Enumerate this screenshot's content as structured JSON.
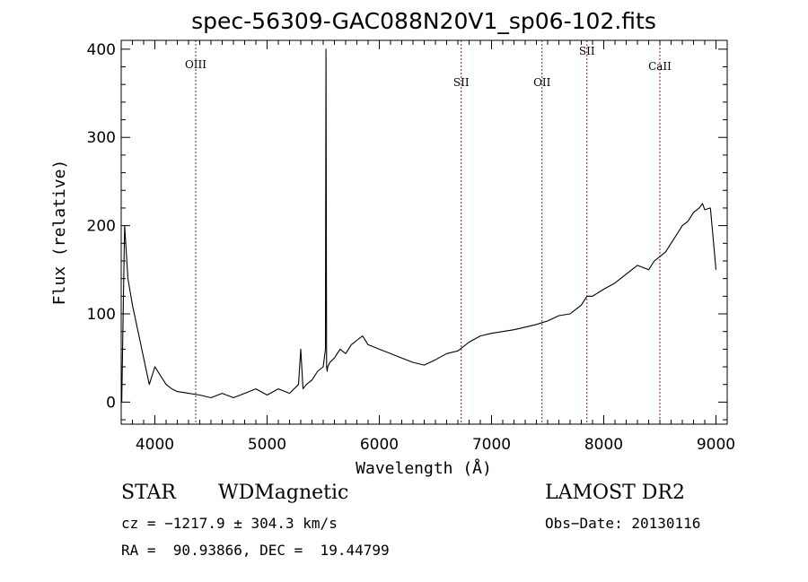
{
  "chart_data": {
    "type": "line",
    "title": "spec-56309-GAC088N20V1_sp06-102.fits",
    "xlabel": "Wavelength (Å)",
    "ylabel": "Flux (relative)",
    "xlim": [
      3700,
      9100
    ],
    "ylim": [
      -25,
      410
    ],
    "xticks": [
      4000,
      5000,
      6000,
      7000,
      8000,
      9000
    ],
    "yticks": [
      0,
      100,
      200,
      300,
      400
    ],
    "grid": false,
    "series": [
      {
        "x": [
          3705,
          3730,
          3760,
          3800,
          3850,
          3900,
          3950,
          4000,
          4050,
          4100,
          4150,
          4200,
          4300,
          4400,
          4500,
          4600,
          4700,
          4800,
          4900,
          5000,
          5100,
          5200,
          5280,
          5300,
          5320,
          5350,
          5400,
          5450,
          5500,
          5520,
          5525,
          5530,
          5535,
          5540,
          5560,
          5600,
          5650,
          5700,
          5750,
          5800,
          5850,
          5900,
          6000,
          6100,
          6200,
          6300,
          6400,
          6500,
          6600,
          6700,
          6800,
          6900,
          7000,
          7100,
          7200,
          7300,
          7400,
          7500,
          7600,
          7700,
          7800,
          7850,
          7900,
          8000,
          8100,
          8200,
          8300,
          8400,
          8450,
          8500,
          8550,
          8600,
          8650,
          8700,
          8750,
          8800,
          8850,
          8880,
          8900,
          8950,
          9000
        ],
        "y": [
          0,
          200,
          140,
          110,
          80,
          50,
          20,
          40,
          30,
          20,
          15,
          12,
          10,
          8,
          5,
          10,
          5,
          10,
          15,
          8,
          15,
          10,
          20,
          60,
          15,
          20,
          25,
          35,
          40,
          60,
          400,
          40,
          35,
          40,
          45,
          50,
          60,
          55,
          65,
          70,
          75,
          65,
          60,
          55,
          50,
          45,
          42,
          48,
          55,
          58,
          68,
          75,
          78,
          80,
          82,
          85,
          88,
          92,
          98,
          100,
          110,
          120,
          120,
          128,
          135,
          145,
          155,
          150,
          160,
          165,
          170,
          180,
          190,
          200,
          205,
          215,
          220,
          225,
          218,
          220,
          150
        ]
      }
    ],
    "annotations": [
      {
        "label": "OIII",
        "x": 4364
      },
      {
        "label": "SII",
        "x": 6730
      },
      {
        "label": "OII",
        "x": 7450
      },
      {
        "label": "SII",
        "x": 7850
      },
      {
        "label": "CaII",
        "x": 8500
      }
    ]
  },
  "info": {
    "class_label": "STAR",
    "subclass": "WDMagnetic",
    "survey": "LAMOST DR2",
    "cz": "cz = −1217.9 ± 304.3 km/s",
    "obs_date": "Obs−Date: 20130116",
    "coords": "RA =  90.93866, DEC =  19.44799"
  },
  "colors": {
    "spectrum": "#000000",
    "line_markers": "#8b1a1a"
  }
}
